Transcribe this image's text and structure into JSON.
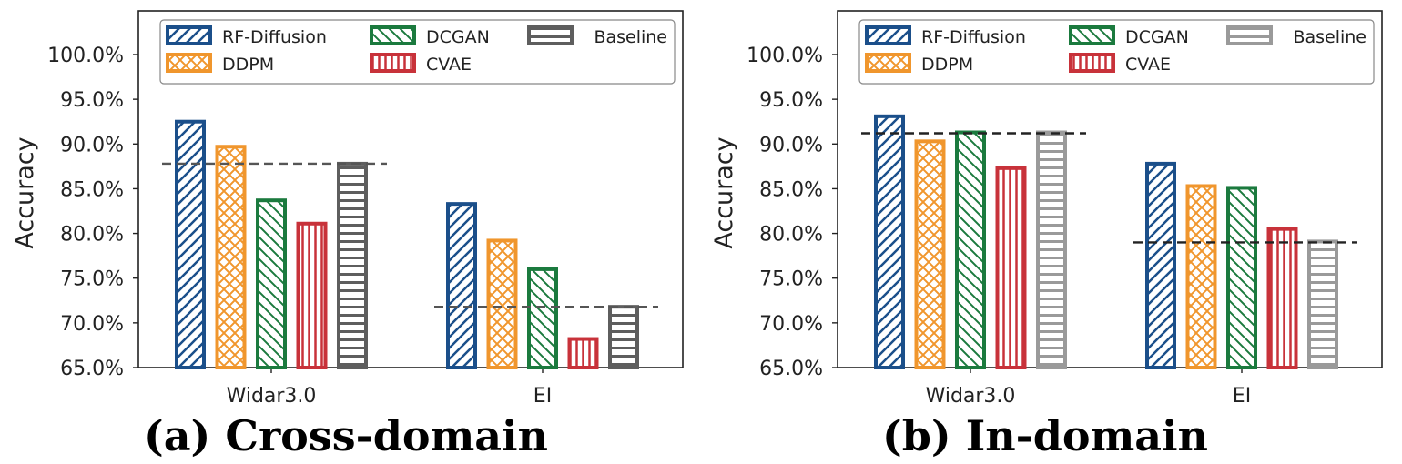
{
  "colors": {
    "RF-Diffusion": "#1b4f8a",
    "DDPM": "#f0962d",
    "DCGAN": "#1b7a3e",
    "CVAE": "#c8323a",
    "Baseline_cross": "#5e5e5e",
    "Baseline_in": "#9a9a9a"
  },
  "chart_data": [
    {
      "type": "bar",
      "caption": "(a) Cross-domain",
      "ylabel": "Accuracy",
      "ylim": [
        65,
        100
      ],
      "yticks": [
        "65.0%",
        "70.0%",
        "75.0%",
        "80.0%",
        "85.0%",
        "90.0%",
        "95.0%",
        "100.0%"
      ],
      "categories": [
        "Widar3.0",
        "EI"
      ],
      "series": [
        {
          "name": "RF-Diffusion",
          "values": [
            92.5,
            83.3
          ]
        },
        {
          "name": "DDPM",
          "values": [
            89.7,
            79.2
          ]
        },
        {
          "name": "DCGAN",
          "values": [
            83.7,
            76.0
          ]
        },
        {
          "name": "CVAE",
          "values": [
            81.1,
            68.2
          ]
        },
        {
          "name": "Baseline",
          "values": [
            87.8,
            71.8
          ]
        }
      ],
      "reference_lines": [
        87.8,
        71.8
      ],
      "legend": "top"
    },
    {
      "type": "bar",
      "caption": "(b) In-domain",
      "ylabel": "Accuracy",
      "ylim": [
        65,
        100
      ],
      "yticks": [
        "65.0%",
        "70.0%",
        "75.0%",
        "80.0%",
        "85.0%",
        "90.0%",
        "95.0%",
        "100.0%"
      ],
      "categories": [
        "Widar3.0",
        "EI"
      ],
      "series": [
        {
          "name": "RF-Diffusion",
          "values": [
            93.1,
            87.8
          ]
        },
        {
          "name": "DDPM",
          "values": [
            90.3,
            85.3
          ]
        },
        {
          "name": "DCGAN",
          "values": [
            91.3,
            85.1
          ]
        },
        {
          "name": "CVAE",
          "values": [
            87.3,
            80.5
          ]
        },
        {
          "name": "Baseline",
          "values": [
            91.3,
            79.1
          ]
        }
      ],
      "reference_lines": [
        91.2,
        79.0
      ],
      "legend": "top"
    }
  ]
}
